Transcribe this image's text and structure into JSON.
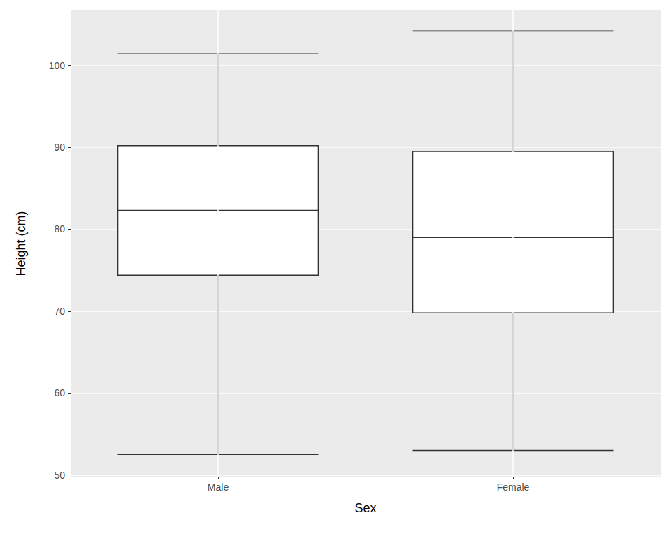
{
  "chart_data": {
    "type": "boxplot",
    "categories": [
      "Male",
      "Female"
    ],
    "boxes": [
      {
        "min": 52.5,
        "q1": 74.4,
        "median": 82.3,
        "q3": 90.2,
        "max": 101.4
      },
      {
        "min": 53.0,
        "q1": 69.8,
        "median": 79.0,
        "q3": 89.5,
        "max": 104.2
      }
    ],
    "x_label": "Sex",
    "y_label": "Height (cm)",
    "ylim": [
      49.8,
      106.7
    ],
    "yticks": [
      50,
      60,
      70,
      80,
      90,
      100
    ],
    "grid": true
  }
}
